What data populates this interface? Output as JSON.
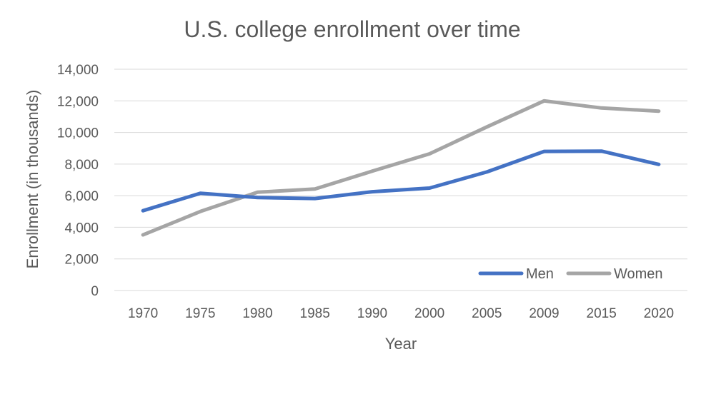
{
  "chart_data": {
    "type": "line",
    "title": "U.S. college enrollment over time",
    "xlabel": "Year",
    "ylabel": "Enrollment (in thousands)",
    "categories": [
      "1970",
      "1975",
      "1980",
      "1985",
      "1990",
      "2000",
      "2005",
      "2009",
      "2015",
      "2020"
    ],
    "ylim": [
      0,
      14000
    ],
    "yticks": [
      0,
      2000,
      4000,
      6000,
      8000,
      10000,
      12000,
      14000
    ],
    "ytick_labels": [
      "0",
      "2,000",
      "4,000",
      "6,000",
      "8,000",
      "10,000",
      "12,000",
      "14,000"
    ],
    "grid": true,
    "legend_position": "bottom-right",
    "series": [
      {
        "name": "Men",
        "color": "#4472c4",
        "values": [
          5050,
          6150,
          5880,
          5820,
          6250,
          6480,
          7500,
          8800,
          8820,
          7980
        ]
      },
      {
        "name": "Women",
        "color": "#a5a5a5",
        "values": [
          3520,
          5000,
          6220,
          6420,
          7550,
          8650,
          10350,
          12000,
          11550,
          11350
        ]
      }
    ]
  }
}
